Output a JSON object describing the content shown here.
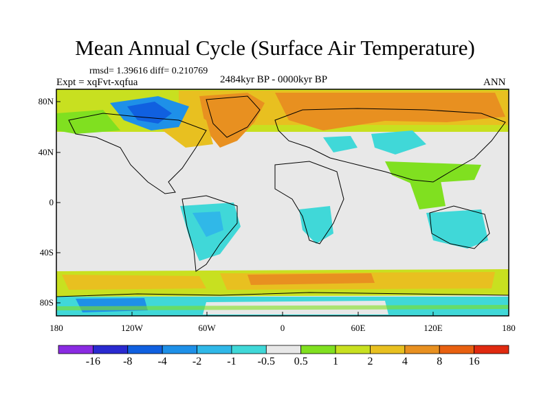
{
  "title": "Mean Annual Cycle (Surface Air Temperature)",
  "stats": "rmsd= 1.39616 diff= 0.210769",
  "experiment": "Expt = xqFvt-xqfua",
  "period": "2484kyr BP - 0000kyr BP",
  "season": "ANN",
  "y_axis_labels": [
    "80N",
    "40N",
    "0",
    "40S",
    "80S"
  ],
  "x_axis_labels": [
    "180",
    "120W",
    "60W",
    "0",
    "60E",
    "120E",
    "180"
  ],
  "colorbar": {
    "labels": [
      "-16",
      "-8",
      "-4",
      "-2",
      "-1",
      "-0.5",
      "0.5",
      "1",
      "2",
      "4",
      "8",
      "16"
    ],
    "colors": [
      "#8a2be2",
      "#2a2ad0",
      "#1060e0",
      "#1e90e8",
      "#30b8e8",
      "#40d8d8",
      "#e8e8e8",
      "#80e020",
      "#c8e020",
      "#e8c020",
      "#e89020",
      "#e86010",
      "#e02a10"
    ]
  },
  "colors": {
    "background": "#e8e8e8",
    "frame": "#000000"
  }
}
